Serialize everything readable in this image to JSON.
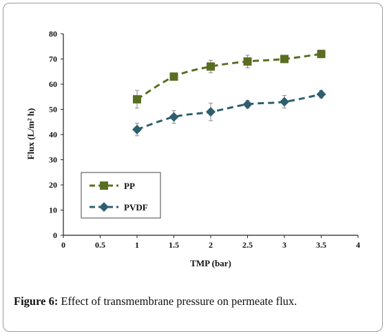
{
  "caption": {
    "label": "Figure 6",
    "separator": ":",
    "text": " Effect of transmembrane pressure on permeate flux."
  },
  "chart_data": {
    "type": "line",
    "title": "",
    "xlabel": "TMP (bar)",
    "ylabel": "Flux (L/m² h)",
    "xlim": [
      0,
      4
    ],
    "ylim": [
      0,
      80
    ],
    "xticks": [
      "0",
      "0.5",
      "1",
      "1.5",
      "2",
      "2.5",
      "3",
      "3.5",
      "4"
    ],
    "yticks": [
      "0",
      "10",
      "20",
      "30",
      "40",
      "50",
      "60",
      "70",
      "80"
    ],
    "grid": false,
    "legend_position": "bottom-left",
    "x": [
      1,
      1.5,
      2,
      2.5,
      3,
      3.5
    ],
    "series": [
      {
        "name": "PP",
        "marker": "square",
        "color": "#5a6e22",
        "values": [
          54,
          63,
          67,
          69,
          70,
          72
        ],
        "errors": [
          3.5,
          1.5,
          2.5,
          2.5,
          1.5,
          1.5
        ]
      },
      {
        "name": "PVDF",
        "marker": "diamond",
        "color": "#2e5f6e",
        "values": [
          42,
          47,
          49,
          52,
          53,
          56
        ],
        "errors": [
          2.5,
          2.5,
          3.5,
          1.5,
          2.5,
          1.5
        ]
      }
    ]
  }
}
